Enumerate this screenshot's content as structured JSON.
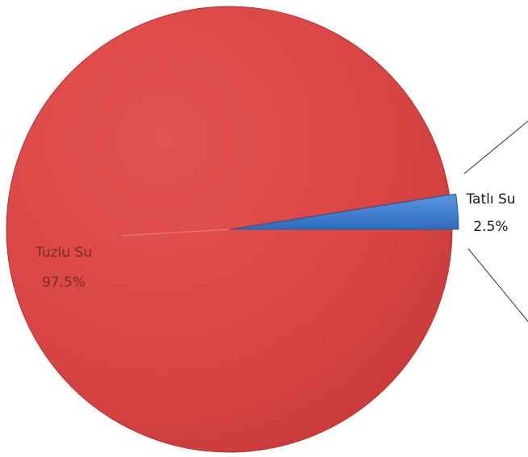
{
  "chart_data": {
    "type": "pie",
    "slices": [
      {
        "label": "Tuzlu Su",
        "value": 97.5,
        "value_label": "97.5%",
        "color": "#d94545"
      },
      {
        "label": "Tatlı Su",
        "value": 2.5,
        "value_label": "2.5%",
        "color": "#3f7fd2"
      }
    ]
  }
}
